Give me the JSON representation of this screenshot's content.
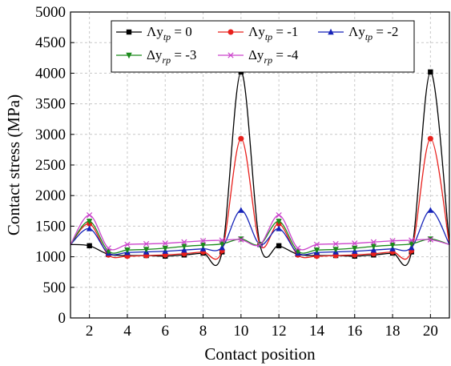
{
  "chart_data": {
    "type": "line",
    "title": "",
    "xlabel": "Contact position",
    "ylabel": "Contact stress (MPa)",
    "xlim": [
      1,
      21
    ],
    "ylim": [
      0,
      5000
    ],
    "x_ticks": [
      2,
      4,
      6,
      8,
      10,
      12,
      14,
      16,
      18,
      20
    ],
    "y_ticks": [
      0,
      500,
      1000,
      1500,
      2000,
      2500,
      3000,
      3500,
      4000,
      4500,
      5000
    ],
    "grid": true,
    "legend_placement": "top-center",
    "x": [
      1,
      2,
      3,
      4,
      5,
      6,
      7,
      8,
      9,
      10,
      11,
      12,
      13,
      14,
      15,
      16,
      17,
      18,
      19,
      20,
      21
    ],
    "series": [
      {
        "name": "Λy_tp = 0",
        "legend": {
          "prefix": "Λy",
          "sub": "tp",
          "suffix": " = 0"
        },
        "color": "#000000",
        "marker": "square",
        "values": [
          1200,
          1180,
          1040,
          1020,
          1020,
          1010,
          1030,
          1060,
          1080,
          4020,
          1200,
          1180,
          1040,
          1020,
          1020,
          1010,
          1030,
          1060,
          1080,
          4020,
          1200
        ]
      },
      {
        "name": "Λy_tp = -1",
        "legend": {
          "prefix": "Λy",
          "sub": "tp",
          "suffix": " = -1"
        },
        "color": "#e8201c",
        "marker": "circle",
        "values": [
          1200,
          1540,
          1030,
          1010,
          1020,
          1030,
          1050,
          1080,
          1100,
          2930,
          1200,
          1540,
          1030,
          1010,
          1020,
          1030,
          1050,
          1080,
          1100,
          2930,
          1200
        ]
      },
      {
        "name": "Λy_tp = -2",
        "legend": {
          "prefix": "Λy",
          "sub": "tp",
          "suffix": " = -2"
        },
        "color": "#1522b8",
        "marker": "triangle",
        "values": [
          1200,
          1460,
          1060,
          1070,
          1080,
          1090,
          1110,
          1130,
          1150,
          1760,
          1200,
          1460,
          1060,
          1070,
          1080,
          1090,
          1110,
          1130,
          1150,
          1760,
          1200
        ]
      },
      {
        "name": "Δy_rp = -3",
        "legend": {
          "prefix": "Δy",
          "sub": "rp",
          "suffix": " = -3"
        },
        "color": "#1b8a1b",
        "marker": "triangle-down",
        "values": [
          1200,
          1580,
          1090,
          1110,
          1120,
          1140,
          1170,
          1190,
          1210,
          1290,
          1200,
          1580,
          1090,
          1110,
          1120,
          1140,
          1170,
          1190,
          1210,
          1290,
          1200
        ]
      },
      {
        "name": "Δy_rp = -4",
        "legend": {
          "prefix": "Δy",
          "sub": "rp",
          "suffix": " = -4"
        },
        "color": "#cc44cc",
        "marker": "x",
        "values": [
          1200,
          1680,
          1140,
          1200,
          1210,
          1220,
          1240,
          1260,
          1270,
          1280,
          1200,
          1680,
          1140,
          1200,
          1210,
          1220,
          1240,
          1260,
          1270,
          1280,
          1200
        ]
      }
    ]
  }
}
